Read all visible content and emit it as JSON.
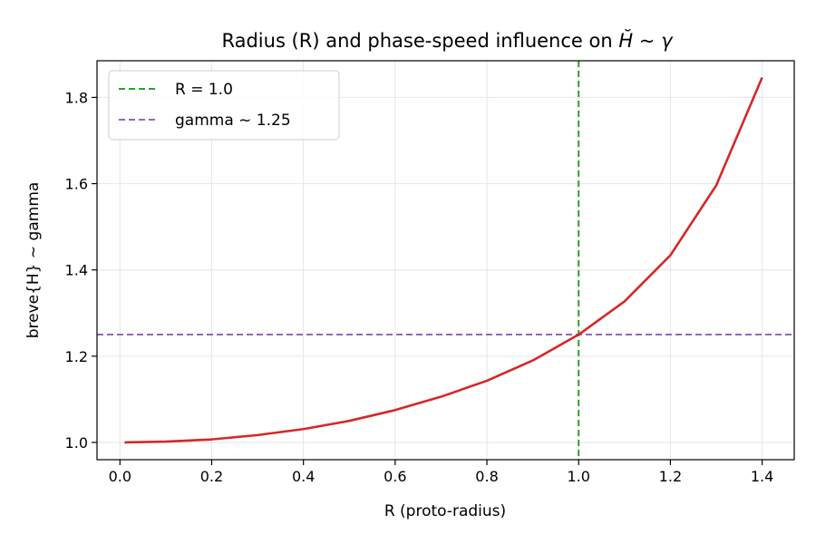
{
  "chart_data": {
    "type": "line",
    "title": "Radius (R) and phase-speed influence on ",
    "title_math": "H̆ ~ γ",
    "xlabel": "R (proto-radius)",
    "ylabel": "breve{H} ~ gamma",
    "xlim": [
      -0.05,
      1.47
    ],
    "ylim": [
      0.96,
      1.885
    ],
    "xticks": [
      0.0,
      0.2,
      0.4,
      0.6,
      0.8,
      1.0,
      1.2,
      1.4
    ],
    "xtick_labels": [
      "0.0",
      "0.2",
      "0.4",
      "0.6",
      "0.8",
      "1.0",
      "1.2",
      "1.4"
    ],
    "yticks": [
      1.0,
      1.2,
      1.4,
      1.6,
      1.8
    ],
    "ytick_labels": [
      "1.0",
      "1.2",
      "1.4",
      "1.6",
      "1.8"
    ],
    "grid": true,
    "legend_position": "top-left",
    "series": [
      {
        "color": "#d62728",
        "x": [
          0.01,
          0.1,
          0.2,
          0.3,
          0.4,
          0.5,
          0.6,
          0.7,
          0.8,
          0.9,
          1.0,
          1.1,
          1.2,
          1.3,
          1.4
        ],
        "y": [
          1.0,
          1.002,
          1.007,
          1.017,
          1.031,
          1.05,
          1.075,
          1.106,
          1.143,
          1.19,
          1.25,
          1.327,
          1.434,
          1.596,
          1.846
        ]
      }
    ],
    "reference_lines": [
      {
        "orientation": "vertical",
        "value": 1.0,
        "label": "R = 1.0",
        "color": "#2ca02c"
      },
      {
        "orientation": "horizontal",
        "value": 1.25,
        "label": "gamma ~ 1.25",
        "color": "#9467bd"
      }
    ]
  }
}
